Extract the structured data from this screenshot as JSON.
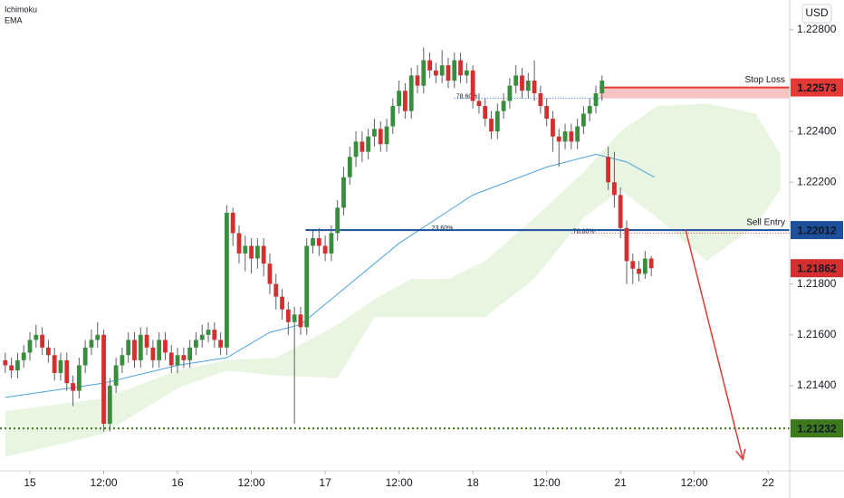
{
  "chart_data": {
    "type": "candlestick",
    "indicators": [
      "Ichimoku",
      "EMA"
    ],
    "currency": "USD",
    "up_color": "#388e3c",
    "down_color": "#d32f2f",
    "wick_color": "#5d606b",
    "xlim": [
      -4.86,
      123.5
    ],
    "ylim": [
      1.21065,
      1.22917
    ],
    "xticks": [
      {
        "value": 0,
        "label": "15"
      },
      {
        "value": 12,
        "label": "12:00"
      },
      {
        "value": 24,
        "label": "16"
      },
      {
        "value": 36,
        "label": "12:00"
      },
      {
        "value": 48,
        "label": "17"
      },
      {
        "value": 60,
        "label": "12:00"
      },
      {
        "value": 72,
        "label": "18"
      },
      {
        "value": 84,
        "label": "12:00"
      },
      {
        "value": 96,
        "label": "21"
      },
      {
        "value": 108,
        "label": "12:00"
      },
      {
        "value": 120,
        "label": "22"
      }
    ],
    "yticks": [
      {
        "value": 1.228,
        "label": "1.22800"
      },
      {
        "value": 1.224,
        "label": "1.22400"
      },
      {
        "value": 1.222,
        "label": "1.22200"
      },
      {
        "value": 1.218,
        "label": "1.21800"
      },
      {
        "value": 1.216,
        "label": "1.21600"
      },
      {
        "value": 1.214,
        "label": "1.21400"
      }
    ],
    "grid": false,
    "x": [
      -4,
      -3,
      -2,
      -1,
      0,
      1,
      2,
      3,
      4,
      5,
      6,
      7,
      8,
      9,
      10,
      11,
      12,
      13,
      14,
      15,
      16,
      17,
      18,
      19,
      20,
      21,
      22,
      23,
      24,
      25,
      26,
      27,
      28,
      29,
      30,
      31,
      32,
      33,
      34,
      35,
      36,
      37,
      38,
      39,
      40,
      41,
      42,
      43,
      44,
      45,
      46,
      47,
      48,
      49,
      50,
      51,
      52,
      53,
      54,
      55,
      56,
      57,
      58,
      59,
      60,
      61,
      62,
      63,
      64,
      65,
      66,
      67,
      68,
      69,
      70,
      71,
      72,
      73,
      74,
      75,
      76,
      77,
      78,
      79,
      80,
      81,
      82,
      83,
      84,
      85,
      86,
      87,
      88,
      89,
      90,
      91,
      92,
      93,
      94,
      95,
      96,
      97,
      98,
      99,
      100,
      101
    ],
    "open": [
      1.215,
      1.2148,
      1.2146,
      1.215,
      1.2153,
      1.2158,
      1.216,
      1.2155,
      1.2152,
      1.2145,
      1.215,
      1.2141,
      1.2138,
      1.2148,
      1.2155,
      1.2158,
      1.216,
      1.2125,
      1.214,
      1.2148,
      1.2152,
      1.2158,
      1.215,
      1.216,
      1.2155,
      1.215,
      1.2158,
      1.2153,
      1.2148,
      1.2152,
      1.215,
      1.2155,
      1.2158,
      1.216,
      1.2162,
      1.2158,
      1.2155,
      1.2208,
      1.22,
      1.2192,
      1.2195,
      1.219,
      1.2195,
      1.2188,
      1.218,
      1.2175,
      1.217,
      1.2165,
      1.2168,
      1.2163,
      1.2195,
      1.2198,
      1.2195,
      1.2192,
      1.22,
      1.221,
      1.2222,
      1.223,
      1.2236,
      1.2232,
      1.2238,
      1.2241,
      1.2235,
      1.2242,
      1.225,
      1.2256,
      1.2248,
      1.2262,
      1.2258,
      1.2268,
      1.2264,
      1.2262,
      1.2266,
      1.226,
      1.2268,
      1.2262,
      1.2264,
      1.2252,
      1.225,
      1.2245,
      1.224,
      1.2248,
      1.2252,
      1.2258,
      1.2262,
      1.2256,
      1.226,
      1.2255,
      1.225,
      1.2245,
      1.2238,
      1.2236,
      1.224,
      1.2236,
      1.2242,
      1.2247,
      1.225,
      1.2255,
      1.223,
      1.222,
      1.2215,
      1.2202,
      1.2189,
      1.2186,
      1.2184,
      1.219
    ],
    "high": [
      1.2153,
      1.2151,
      1.2153,
      1.2156,
      1.2161,
      1.2164,
      1.2163,
      1.2158,
      1.2155,
      1.2153,
      1.2153,
      1.2144,
      1.2151,
      1.2158,
      1.2162,
      1.2165,
      1.2162,
      1.2143,
      1.2151,
      1.2155,
      1.2161,
      1.2161,
      1.2163,
      1.2163,
      1.2158,
      1.2161,
      1.2161,
      1.2156,
      1.2155,
      1.2155,
      1.2158,
      1.2161,
      1.2164,
      1.2165,
      1.2165,
      1.2161,
      1.2211,
      1.221,
      1.2203,
      1.2199,
      1.2198,
      1.2198,
      1.2198,
      1.2192,
      1.2184,
      1.2178,
      1.2173,
      1.2171,
      1.2171,
      1.2198,
      1.2201,
      1.2202,
      1.2199,
      1.2203,
      1.2213,
      1.2226,
      1.2234,
      1.224,
      1.224,
      1.2241,
      1.2245,
      1.2244,
      1.2245,
      1.2253,
      1.226,
      1.2259,
      1.2265,
      1.2266,
      1.2273,
      1.2271,
      1.2267,
      1.2272,
      1.2269,
      1.2271,
      1.2271,
      1.2267,
      1.2266,
      1.2255,
      1.2253,
      1.2248,
      1.2251,
      1.2255,
      1.2261,
      1.2266,
      1.2265,
      1.2263,
      1.2268,
      1.2258,
      1.2253,
      1.2248,
      1.2241,
      1.2243,
      1.2243,
      1.2245,
      1.225,
      1.2253,
      1.2258,
      1.2262,
      1.2234,
      1.2232,
      1.2218,
      1.2205,
      1.2192,
      1.2189,
      1.2193,
      1.2191
    ],
    "low": [
      1.2145,
      1.2143,
      1.2143,
      1.2147,
      1.215,
      1.2155,
      1.2152,
      1.2149,
      1.2142,
      1.2142,
      1.2138,
      1.2132,
      1.2135,
      1.2145,
      1.2152,
      1.2155,
      1.2122,
      1.2122,
      1.2137,
      1.2145,
      1.2149,
      1.2147,
      1.2147,
      1.2152,
      1.2147,
      1.2147,
      1.215,
      1.2145,
      1.2145,
      1.2147,
      1.2147,
      1.2152,
      1.2155,
      1.2157,
      1.2155,
      1.2152,
      1.2152,
      1.2195,
      1.2188,
      1.2185,
      1.2184,
      1.2186,
      1.2183,
      1.2176,
      1.217,
      1.2166,
      1.216,
      1.2125,
      1.216,
      1.216,
      1.2192,
      1.2191,
      1.2189,
      1.2189,
      1.2197,
      1.2207,
      1.2219,
      1.2226,
      1.2228,
      1.2229,
      1.2234,
      1.2232,
      1.2232,
      1.2239,
      1.2247,
      1.2245,
      1.2245,
      1.2255,
      1.2255,
      1.2261,
      1.2259,
      1.2259,
      1.2257,
      1.2257,
      1.2259,
      1.2259,
      1.2249,
      1.2247,
      1.2242,
      1.2237,
      1.2237,
      1.2245,
      1.2249,
      1.2255,
      1.2253,
      1.2253,
      1.2252,
      1.2247,
      1.2242,
      1.2232,
      1.2226,
      1.2233,
      1.2233,
      1.2233,
      1.2239,
      1.2244,
      1.2247,
      1.2252,
      1.2217,
      1.221,
      1.2198,
      1.218,
      1.218,
      1.2181,
      1.2182,
      1.2183
    ],
    "close": [
      1.2148,
      1.2146,
      1.215,
      1.2153,
      1.2158,
      1.216,
      1.2155,
      1.2152,
      1.2145,
      1.215,
      1.2141,
      1.2138,
      1.2148,
      1.2155,
      1.2158,
      1.216,
      1.2125,
      1.214,
      1.2148,
      1.2152,
      1.2158,
      1.215,
      1.216,
      1.2155,
      1.215,
      1.2158,
      1.2153,
      1.2148,
      1.2152,
      1.215,
      1.2155,
      1.2158,
      1.216,
      1.2162,
      1.2158,
      1.2155,
      1.2208,
      1.22,
      1.2192,
      1.2195,
      1.219,
      1.2195,
      1.2188,
      1.218,
      1.2175,
      1.217,
      1.2165,
      1.2168,
      1.2163,
      1.2195,
      1.2198,
      1.2195,
      1.2192,
      1.22,
      1.221,
      1.2222,
      1.223,
      1.2236,
      1.2232,
      1.2238,
      1.2241,
      1.2235,
      1.2242,
      1.225,
      1.2256,
      1.2248,
      1.2262,
      1.2258,
      1.2268,
      1.2264,
      1.2262,
      1.2266,
      1.226,
      1.2268,
      1.2262,
      1.2264,
      1.2252,
      1.225,
      1.2245,
      1.224,
      1.2248,
      1.2252,
      1.2258,
      1.2262,
      1.2256,
      1.226,
      1.2255,
      1.225,
      1.2245,
      1.2238,
      1.2236,
      1.224,
      1.2236,
      1.2242,
      1.2247,
      1.225,
      1.2255,
      1.226,
      1.222,
      1.2215,
      1.2202,
      1.2189,
      1.2186,
      1.2184,
      1.219,
      1.21862
    ],
    "ema": {
      "color": "#4aa3df",
      "x": [
        -4,
        12,
        24,
        32,
        39,
        44,
        60,
        72,
        84,
        92,
        97,
        101.5
      ],
      "values": [
        1.21354,
        1.2141,
        1.2148,
        1.2151,
        1.2161,
        1.2164,
        1.2196,
        1.2215,
        1.2226,
        1.2231,
        1.2228,
        1.2222
      ]
    },
    "cloud": {
      "color": "#e8f5e1",
      "x": [
        -4,
        12,
        24,
        32,
        40,
        50,
        56,
        62,
        68,
        74,
        82,
        90,
        96,
        102,
        110,
        118,
        122
      ],
      "upper": [
        1.213,
        1.2135,
        1.2146,
        1.215,
        1.2151,
        1.2164,
        1.2174,
        1.2182,
        1.2182,
        1.2189,
        1.2206,
        1.2224,
        1.224,
        1.225,
        1.2251,
        1.2247,
        1.2231
      ],
      "lower": [
        1.2112,
        1.2121,
        1.2139,
        1.2146,
        1.2144,
        1.2143,
        1.2167,
        1.2167,
        1.2167,
        1.2167,
        1.2182,
        1.2206,
        1.2217,
        1.2206,
        1.2189,
        1.2203,
        1.2217
      ]
    },
    "zone": {
      "high": 1.22573,
      "low": 1.2253,
      "x0": 92.6,
      "color": "#f9b4b4"
    },
    "levels": [
      {
        "name": "Stop Loss",
        "value": 1.22573,
        "color": "#e53935",
        "x0": 92.6,
        "style": "solid"
      },
      {
        "name": "Sell Entry",
        "value": 1.22012,
        "color": "#1c4f9c",
        "x0": 44.8,
        "style": "solid"
      },
      {
        "value": 1.21232,
        "color": "#3d7a1e",
        "x0": -4.86,
        "style": "dotted"
      }
    ],
    "fibs": [
      {
        "label": "78.60%",
        "value": 1.2253,
        "x0": 69,
        "x1": 93,
        "color": "#2962ff"
      },
      {
        "label": "23.60%",
        "value": 1.22012,
        "x0": 65,
        "x1": 68,
        "color": "#2962ff"
      },
      {
        "label": "78.60%",
        "value": 1.22,
        "x0": 88,
        "x1": 123.5,
        "color": "#e53935"
      }
    ],
    "arrow": {
      "x0": 106.6,
      "y0": 1.22012,
      "x1": 115.9,
      "y1": 1.2111,
      "color": "#e53935"
    }
  }
}
